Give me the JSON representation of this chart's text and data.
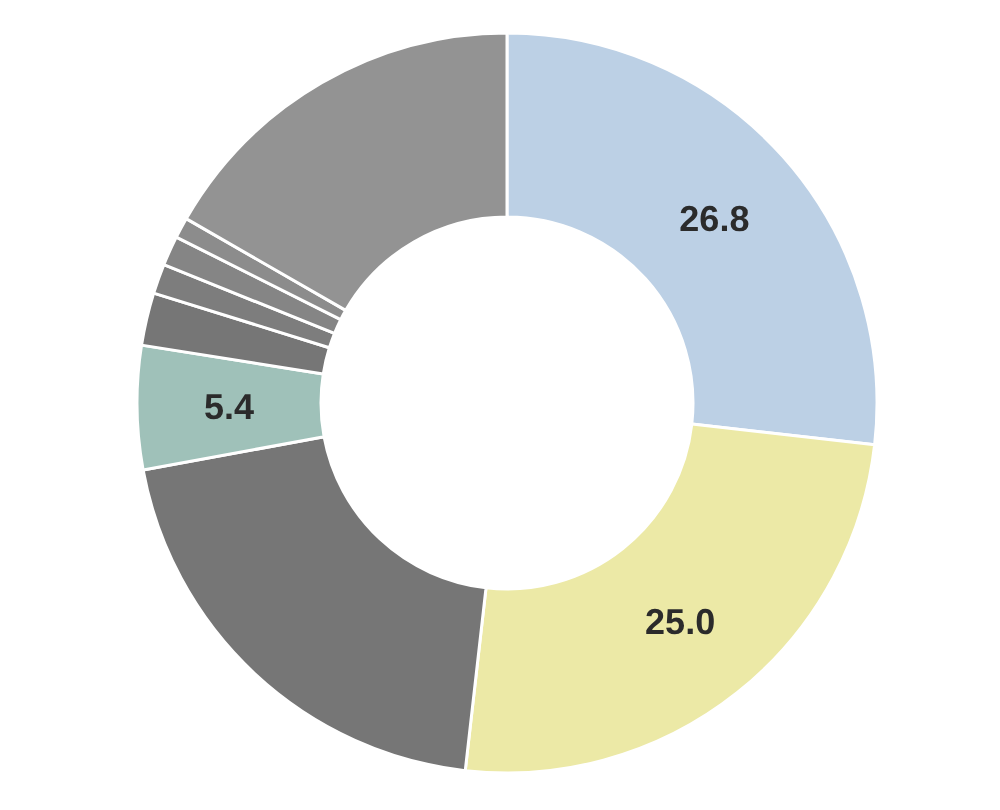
{
  "chart_data": {
    "type": "donut",
    "categories": [
      null,
      null,
      null,
      null,
      null,
      null,
      null,
      null,
      null
    ],
    "values": [
      26.8,
      25.0,
      20.3,
      5.4,
      2.3,
      1.3,
      1.3,
      0.9,
      16.7
    ],
    "colors": [
      "#bcd0e5",
      "#ece9a6",
      "#767676",
      "#9fc1b9",
      "#767676",
      "#7d7d7d",
      "#858585",
      "#8c8c8c",
      "#939393"
    ],
    "value_labels": [
      "26.8",
      "25.0",
      null,
      "5.4",
      null,
      null,
      null,
      null,
      null
    ],
    "legend": false
  }
}
